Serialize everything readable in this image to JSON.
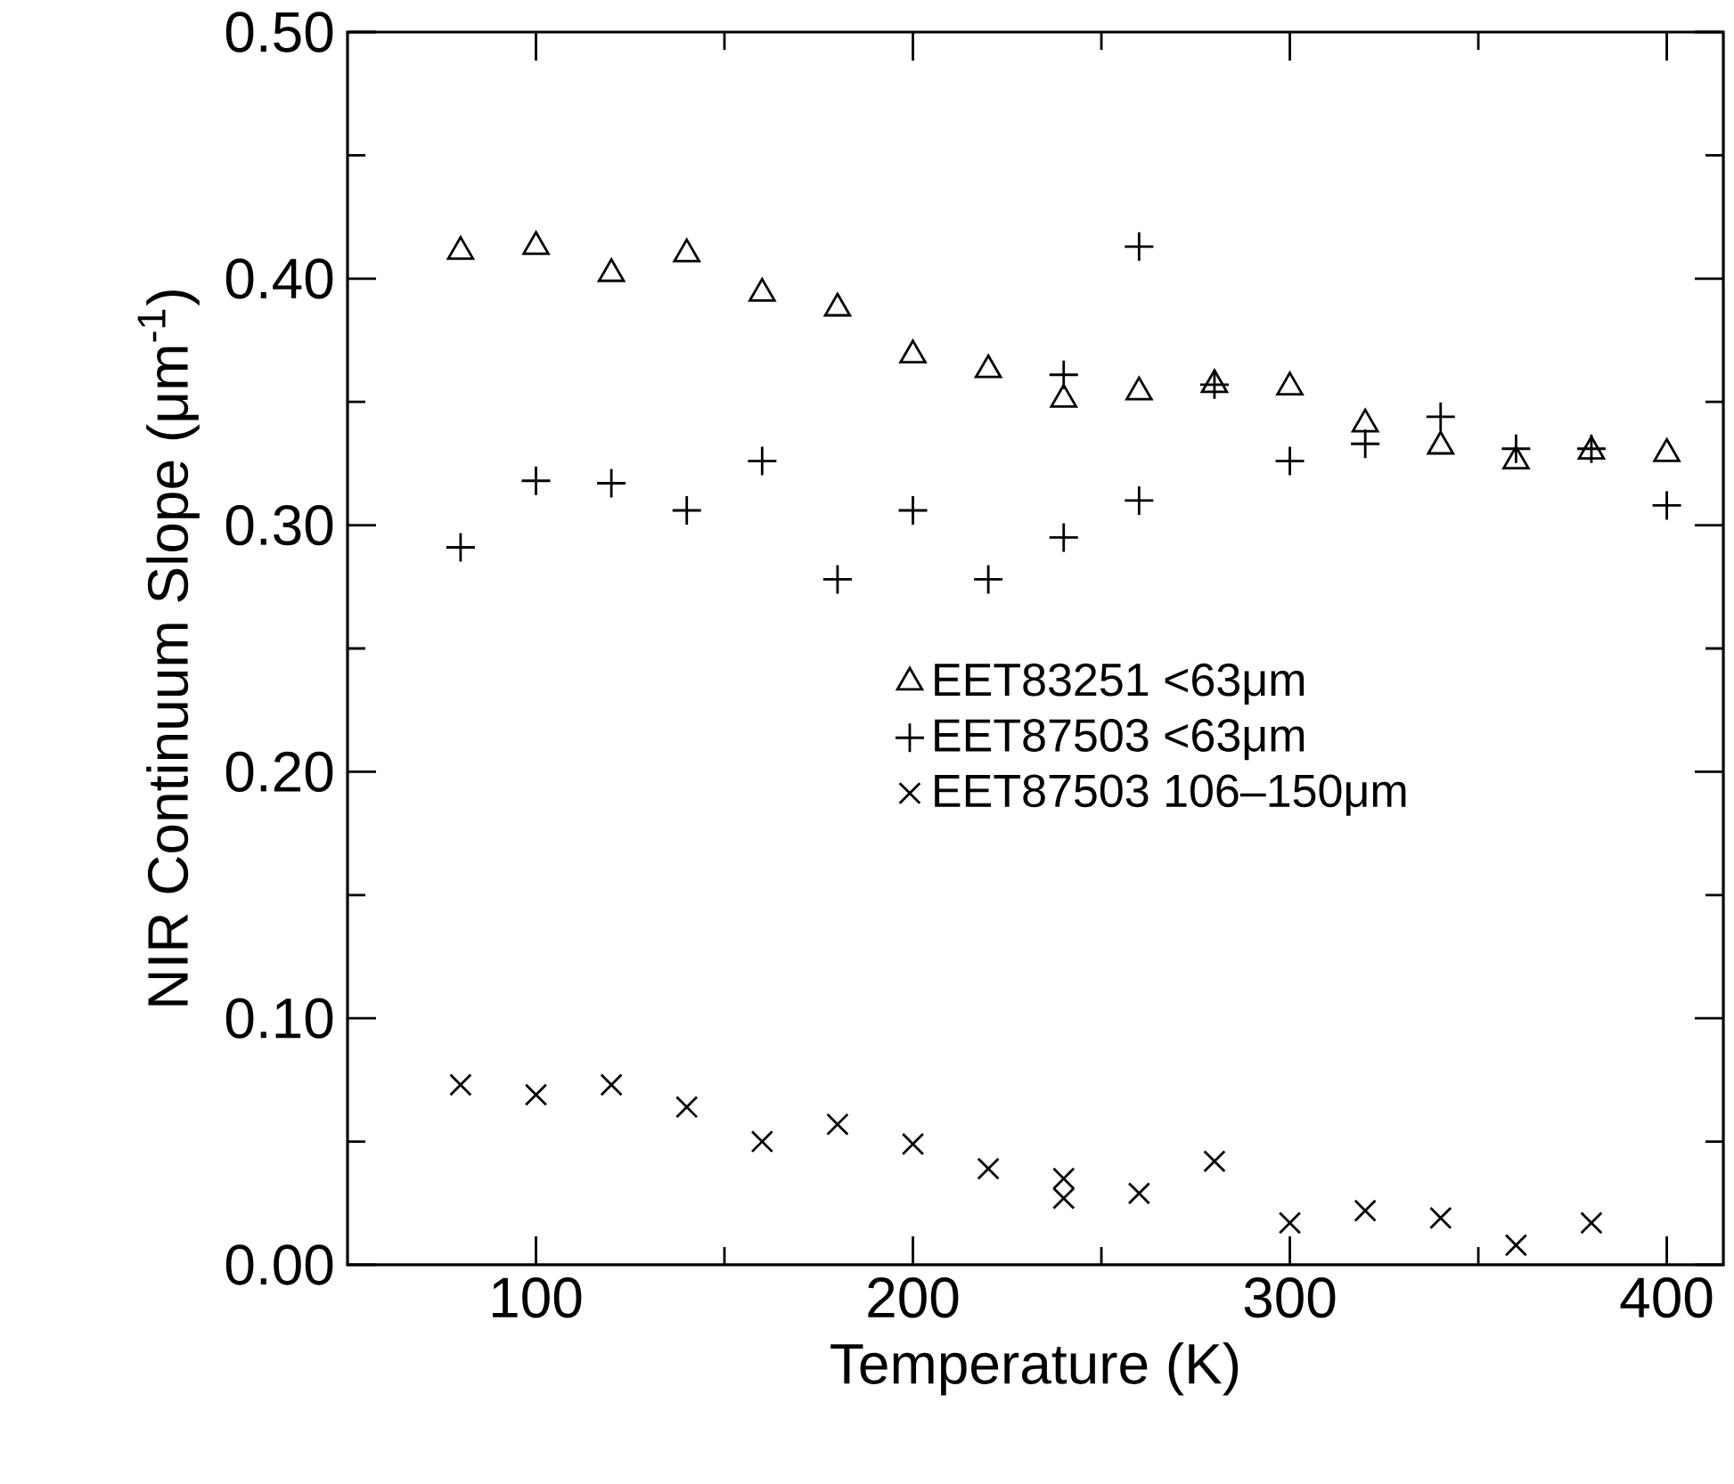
{
  "chart_data": {
    "type": "scatter",
    "xlabel": "Temperature (K)",
    "ylabel": "NIR Continuum Slope (μm$^{-1}$)",
    "xlim": [
      50,
      415
    ],
    "ylim": [
      0,
      0.5
    ],
    "xticks": [
      100,
      200,
      300,
      400
    ],
    "yticks": [
      {
        "value": 0,
        "label": "0.00"
      },
      {
        "value": 0.1,
        "label": "0.10"
      },
      {
        "value": 0.2,
        "label": "0.20"
      },
      {
        "value": 0.3,
        "label": "0.30"
      },
      {
        "value": 0.4,
        "label": "0.40"
      },
      {
        "value": 0.5,
        "label": "0.50"
      }
    ],
    "grid": false,
    "legend": "right",
    "series": [
      {
        "name": "EET83251 <63μm",
        "color": "#000000",
        "marker": "triangle",
        "x": [
          80,
          100,
          120,
          140,
          160,
          180,
          200,
          220,
          240,
          260,
          280,
          300,
          320,
          340,
          360,
          380,
          400
        ],
        "values": [
          0.411,
          0.413,
          0.402,
          0.41,
          0.394,
          0.388,
          0.369,
          0.363,
          0.351,
          0.354,
          0.357,
          0.356,
          0.341,
          0.332,
          0.326,
          0.33,
          0.329
        ]
      },
      {
        "name": "EET87503 <63μm",
        "color": "#000000",
        "marker": "plus",
        "x": [
          80,
          100,
          120,
          140,
          160,
          180,
          200,
          220,
          240,
          240,
          260,
          260,
          280,
          300,
          320,
          340,
          360,
          380,
          400
        ],
        "values": [
          0.291,
          0.318,
          0.317,
          0.306,
          0.326,
          0.278,
          0.306,
          0.278,
          0.361,
          0.295,
          0.413,
          0.31,
          0.357,
          0.326,
          0.333,
          0.344,
          0.331,
          0.331,
          0.308
        ]
      },
      {
        "name": "EET87503 106–150μm",
        "color": "#000000",
        "marker": "cross",
        "x": [
          80,
          100,
          120,
          140,
          160,
          180,
          200,
          220,
          240,
          240,
          260,
          280,
          300,
          320,
          340,
          360,
          380
        ],
        "values": [
          0.073,
          0.069,
          0.073,
          0.064,
          0.05,
          0.057,
          0.049,
          0.039,
          0.035,
          0.027,
          0.029,
          0.042,
          0.017,
          0.022,
          0.019,
          0.008,
          0.017
        ]
      }
    ]
  }
}
